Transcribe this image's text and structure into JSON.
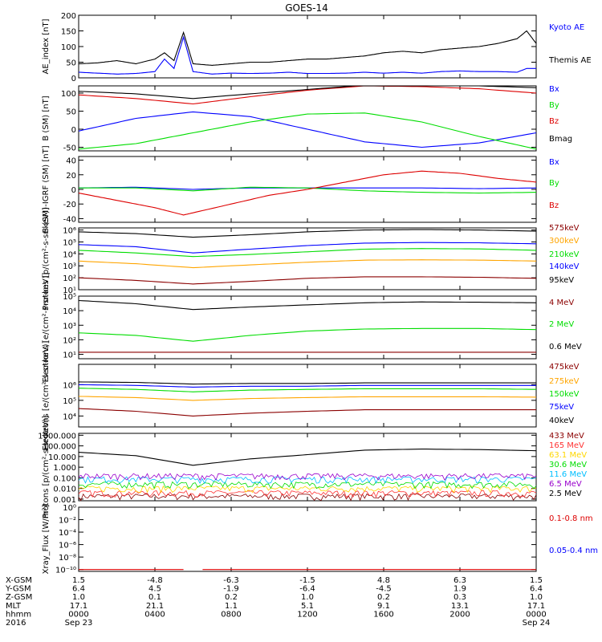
{
  "title": "GOES-14",
  "chart_data": [
    {
      "type": "line",
      "ylabel": "AE_index [nT]",
      "yscale": "linear",
      "ylim": [
        0,
        200
      ],
      "yticks": [
        "0",
        "50",
        "100",
        "150",
        "200"
      ],
      "ytick_values": [
        0,
        50,
        100,
        150,
        200
      ],
      "series": [
        {
          "name": "Kyoto AE",
          "color": "#0000ff",
          "x": [
            0,
            1,
            2,
            3,
            4,
            4.5,
            5,
            5.5,
            6,
            7,
            8,
            9,
            10,
            11,
            12,
            13,
            14,
            15,
            16,
            17,
            18,
            19,
            20,
            21,
            22,
            23,
            23.5,
            24
          ],
          "values": [
            18,
            15,
            12,
            14,
            20,
            60,
            30,
            130,
            20,
            12,
            15,
            14,
            15,
            18,
            14,
            14,
            15,
            18,
            15,
            18,
            15,
            20,
            22,
            20,
            20,
            18,
            30,
            30
          ]
        },
        {
          "name": "Themis AE",
          "color": "#000000",
          "x": [
            0,
            1,
            2,
            3,
            4,
            4.5,
            5,
            5.5,
            6,
            7,
            8,
            9,
            10,
            11,
            12,
            13,
            14,
            15,
            16,
            17,
            18,
            19,
            20,
            21,
            22,
            23,
            23.5,
            24
          ],
          "values": [
            45,
            48,
            55,
            45,
            60,
            80,
            55,
            145,
            45,
            40,
            45,
            50,
            50,
            55,
            60,
            60,
            65,
            70,
            80,
            85,
            80,
            90,
            95,
            100,
            110,
            125,
            150,
            110
          ]
        }
      ]
    },
    {
      "type": "line",
      "ylabel": "B (SM) [nT]",
      "yscale": "linear",
      "ylim": [
        -60,
        120
      ],
      "yticks": [
        "-50",
        "0",
        "50",
        "100"
      ],
      "ytick_values": [
        -50,
        0,
        50,
        100
      ],
      "series": [
        {
          "name": "Bx",
          "color": "#0000ff",
          "x": [
            0,
            3,
            6,
            9,
            12,
            15,
            18,
            21,
            24
          ],
          "values": [
            -5,
            30,
            48,
            35,
            0,
            -35,
            -50,
            -38,
            -10
          ]
        },
        {
          "name": "By",
          "color": "#00dd00",
          "x": [
            0,
            3,
            6,
            9,
            12,
            15,
            18,
            21,
            24
          ],
          "values": [
            -55,
            -40,
            -10,
            20,
            42,
            45,
            20,
            -20,
            -55
          ]
        },
        {
          "name": "Bz",
          "color": "#dd0000",
          "x": [
            0,
            3,
            6,
            9,
            12,
            15,
            18,
            21,
            24
          ],
          "values": [
            95,
            85,
            70,
            90,
            108,
            120,
            118,
            112,
            100
          ]
        },
        {
          "name": "Bmag",
          "color": "#000000",
          "x": [
            0,
            3,
            6,
            9,
            12,
            15,
            18,
            21,
            24
          ],
          "values": [
            105,
            98,
            85,
            98,
            110,
            122,
            125,
            120,
            115
          ]
        }
      ]
    },
    {
      "type": "line",
      "ylabel": "B (SM)-IGRF (SM) [nT]",
      "yscale": "linear",
      "ylim": [
        -45,
        45
      ],
      "yticks": [
        "-40",
        "-20",
        "0",
        "20",
        "40"
      ],
      "ytick_values": [
        -40,
        -20,
        0,
        20,
        40
      ],
      "series": [
        {
          "name": "Bx",
          "color": "#0000ff",
          "x": [
            0,
            3,
            6,
            9,
            12,
            15,
            18,
            21,
            24
          ],
          "values": [
            2,
            3,
            0,
            2,
            2,
            2,
            2,
            1,
            2
          ]
        },
        {
          "name": "By",
          "color": "#00dd00",
          "x": [
            0,
            3,
            6,
            9,
            12,
            15,
            18,
            21,
            24
          ],
          "values": [
            2,
            2,
            -2,
            3,
            2,
            -2,
            -4,
            -5,
            -4
          ]
        },
        {
          "name": "Bz",
          "color": "#dd0000",
          "x": [
            0,
            2,
            4,
            5.5,
            6,
            8,
            10,
            12,
            14,
            16,
            18,
            20,
            22,
            24
          ],
          "values": [
            -5,
            -15,
            -25,
            -35,
            -32,
            -20,
            -8,
            0,
            10,
            20,
            25,
            22,
            15,
            10
          ]
        }
      ]
    },
    {
      "type": "line",
      "ylabel": "Protons [p/(cm²-s-sr-keV)]",
      "yscale": "log",
      "ylim": [
        10,
        1500000
      ],
      "yticks": [
        "10¹",
        "10²",
        "10³",
        "10⁴",
        "10⁵",
        "10⁶"
      ],
      "ytick_values": [
        10,
        100,
        1000,
        10000,
        100000,
        1000000
      ],
      "series": [
        {
          "name": "575keV",
          "color": "#8b0000",
          "x": [
            0,
            3,
            6,
            9,
            12,
            15,
            18,
            21,
            24
          ],
          "values": [
            100,
            60,
            30,
            50,
            90,
            120,
            120,
            110,
            90
          ]
        },
        {
          "name": "300keV",
          "color": "#ffa500",
          "x": [
            0,
            3,
            6,
            9,
            12,
            15,
            18,
            21,
            24
          ],
          "values": [
            2500,
            1500,
            700,
            1200,
            2000,
            3000,
            3200,
            3000,
            2500
          ]
        },
        {
          "name": "210keV",
          "color": "#00dd00",
          "x": [
            0,
            3,
            6,
            9,
            12,
            15,
            18,
            21,
            24
          ],
          "values": [
            20000,
            12000,
            6000,
            9000,
            15000,
            25000,
            28000,
            26000,
            20000
          ]
        },
        {
          "name": "140keV",
          "color": "#0000ff",
          "x": [
            0,
            3,
            6,
            9,
            12,
            15,
            18,
            21,
            24
          ],
          "values": [
            60000,
            40000,
            12000,
            25000,
            50000,
            80000,
            90000,
            85000,
            70000
          ]
        },
        {
          "name": "95keV",
          "color": "#000000",
          "x": [
            0,
            3,
            6,
            9,
            12,
            15,
            18,
            21,
            24
          ],
          "values": [
            700000,
            500000,
            250000,
            400000,
            700000,
            1000000,
            1100000,
            1000000,
            800000
          ]
        }
      ]
    },
    {
      "type": "line",
      "ylabel": "Electrons [e/(cm²-s-sr-keV)]",
      "yscale": "log",
      "ylim": [
        5,
        100000
      ],
      "yticks": [
        "10¹",
        "10²",
        "10³",
        "10⁴",
        "10⁵"
      ],
      "ytick_values": [
        10,
        100,
        1000,
        10000,
        100000
      ],
      "series": [
        {
          "name": "4 MeV",
          "color": "#8b0000",
          "x": [
            0,
            6,
            12,
            18,
            24
          ],
          "values": [
            14,
            14,
            14,
            14,
            14
          ]
        },
        {
          "name": "2 MeV",
          "color": "#00dd00",
          "x": [
            0,
            3,
            6,
            9,
            12,
            15,
            18,
            21,
            24
          ],
          "values": [
            300,
            200,
            80,
            200,
            400,
            550,
            600,
            600,
            500
          ]
        },
        {
          "name": "0.6 MeV",
          "color": "#000000",
          "x": [
            0,
            3,
            6,
            9,
            12,
            15,
            18,
            21,
            24
          ],
          "values": [
            50000,
            30000,
            12000,
            18000,
            25000,
            35000,
            40000,
            38000,
            35000
          ]
        }
      ]
    },
    {
      "type": "line",
      "ylabel": "Electrons [e/(cm²-s-sr-keV)]",
      "yscale": "log",
      "ylim": [
        2000,
        20000000
      ],
      "yticks": [
        "10⁴",
        "10⁵",
        "10⁶"
      ],
      "ytick_values": [
        10000,
        100000,
        1000000
      ],
      "series": [
        {
          "name": "475keV",
          "color": "#8b0000",
          "x": [
            0,
            3,
            6,
            9,
            12,
            15,
            18,
            21,
            24
          ],
          "values": [
            30000,
            20000,
            10000,
            15000,
            20000,
            25000,
            25000,
            25000,
            25000
          ]
        },
        {
          "name": "275keV",
          "color": "#ffa500",
          "x": [
            0,
            3,
            6,
            9,
            12,
            15,
            18,
            21,
            24
          ],
          "values": [
            180000,
            150000,
            100000,
            130000,
            150000,
            170000,
            170000,
            170000,
            160000
          ]
        },
        {
          "name": "150keV",
          "color": "#00dd00",
          "x": [
            0,
            3,
            6,
            9,
            12,
            15,
            18,
            21,
            24
          ],
          "values": [
            600000,
            500000,
            350000,
            450000,
            500000,
            550000,
            550000,
            550000,
            500000
          ]
        },
        {
          "name": "75keV",
          "color": "#0000ff",
          "x": [
            0,
            3,
            6,
            9,
            12,
            15,
            18,
            21,
            24
          ],
          "values": [
            1000000,
            900000,
            700000,
            800000,
            800000,
            900000,
            900000,
            900000,
            900000
          ]
        },
        {
          "name": "40keV",
          "color": "#000000",
          "x": [
            0,
            3,
            6,
            9,
            12,
            15,
            18,
            21,
            24
          ],
          "values": [
            1500000,
            1400000,
            1100000,
            1200000,
            1200000,
            1300000,
            1300000,
            1300000,
            1300000
          ]
        }
      ]
    },
    {
      "type": "line",
      "ylabel": "Protons [p/(cm²-s-sr-keV)]",
      "yscale": "log",
      "ylim": [
        0.0007,
        1500
      ],
      "yticks": [
        "0.001",
        "0.010",
        "0.100",
        "1.000",
        "10.000",
        "100.000",
        "1000.000"
      ],
      "ytick_values": [
        0.001,
        0.01,
        0.1,
        1,
        10,
        100,
        1000
      ],
      "series": [
        {
          "name": "433 MeV",
          "color": "#8b0000",
          "x": [
            0,
            24
          ],
          "values": [
            0.0015,
            0.0015
          ]
        },
        {
          "name": "165 MeV",
          "color": "#ff3333",
          "x": [
            0,
            24
          ],
          "values": [
            0.003,
            0.003
          ]
        },
        {
          "name": "63.1 MeV",
          "color": "#ffd700",
          "x": [
            0,
            24
          ],
          "values": [
            0.008,
            0.008
          ]
        },
        {
          "name": "30.6 MeV",
          "color": "#00dd00",
          "x": [
            0,
            24
          ],
          "values": [
            0.02,
            0.02
          ]
        },
        {
          "name": "11.6 MeV",
          "color": "#00bfff",
          "x": [
            0,
            24
          ],
          "values": [
            0.06,
            0.06
          ]
        },
        {
          "name": "6.5 MeV",
          "color": "#9900cc",
          "x": [
            0,
            24
          ],
          "values": [
            0.12,
            0.12
          ]
        },
        {
          "name": "2.5 MeV",
          "color": "#000000",
          "x": [
            0,
            3,
            6,
            9,
            12,
            15,
            18,
            21,
            24
          ],
          "values": [
            25,
            12,
            1.5,
            6,
            15,
            40,
            50,
            45,
            35
          ]
        }
      ]
    },
    {
      "type": "line",
      "ylabel": "Xray_Flux [W/m²]",
      "yscale": "log",
      "ylim": [
        5e-11,
        1
      ],
      "yticks": [
        "10⁻¹⁰",
        "10⁻⁸",
        "10⁻⁶",
        "10⁻⁴",
        "10⁻²",
        "10⁰"
      ],
      "ytick_values": [
        1e-10,
        1e-08,
        1e-06,
        0.0001,
        0.01,
        1
      ],
      "series": [
        {
          "name": "0.1-0.8 nm",
          "color": "#dd0000",
          "x": [
            0,
            5.5,
            null,
            6.5,
            24
          ],
          "values": [
            1e-10,
            1e-10,
            null,
            1e-10,
            1e-10
          ]
        },
        {
          "name": "0.05-0.4 nm",
          "color": "#0000ff",
          "x": [],
          "values": []
        }
      ]
    }
  ],
  "x_axis": {
    "xlim": [
      0,
      24
    ],
    "tick_x": [
      0,
      4,
      8,
      12,
      16,
      20,
      24
    ],
    "rows": [
      {
        "label": "X-GSM",
        "values": [
          "1.5",
          "-4.8",
          "-6.3",
          "-1.5",
          "4.8",
          "6.3",
          "1.5"
        ]
      },
      {
        "label": "Y-GSM",
        "values": [
          "6.4",
          "4.5",
          "-1.9",
          "-6.4",
          "-4.5",
          "1.9",
          "6.4"
        ]
      },
      {
        "label": "Z-GSM",
        "values": [
          "1.0",
          "0.1",
          "0.2",
          "1.0",
          "0.2",
          "0.3",
          "1.0"
        ]
      },
      {
        "label": "MLT",
        "values": [
          "17.1",
          "21.1",
          "1.1",
          "5.1",
          "9.1",
          "13.1",
          "17.1"
        ]
      },
      {
        "label": "hhmm",
        "values": [
          "0000",
          "0400",
          "0800",
          "1200",
          "1600",
          "2000",
          "0000"
        ]
      },
      {
        "label": "2016",
        "values": [
          "Sep 23",
          "",
          "",
          "",
          "",
          "",
          "Sep 24"
        ]
      }
    ]
  }
}
